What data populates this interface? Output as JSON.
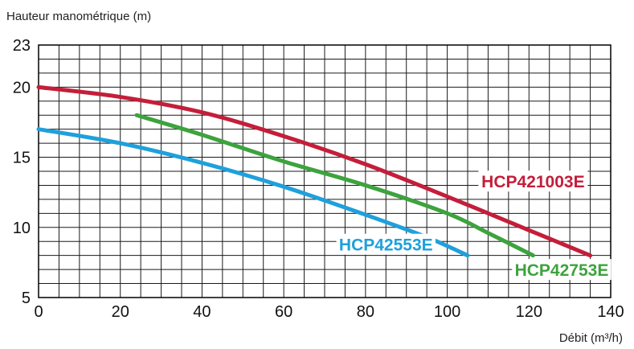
{
  "chart_data": {
    "type": "line",
    "ylabel": "Hauteur manométrique (m)",
    "xlabel": "Débit (m³/h)",
    "xlim": [
      0,
      140
    ],
    "ylim": [
      5,
      23
    ],
    "xticks": [
      0,
      20,
      40,
      60,
      80,
      100,
      120,
      140
    ],
    "yticks": [
      5,
      10,
      15,
      20,
      23
    ],
    "grid": true,
    "series": [
      {
        "name": "HCP421003E",
        "color": "#c41e3a",
        "x": [
          0,
          20,
          40,
          60,
          80,
          100,
          120,
          135
        ],
        "y": [
          20,
          19.3,
          18.2,
          16.5,
          14.5,
          12.2,
          9.8,
          8.0
        ]
      },
      {
        "name": "HCP42753E",
        "color": "#3da33d",
        "x": [
          24,
          40,
          60,
          80,
          100,
          110,
          121
        ],
        "y": [
          18,
          16.6,
          14.7,
          13.0,
          11.0,
          9.6,
          8.0
        ]
      },
      {
        "name": "HCP42553E",
        "color": "#1fa0dc",
        "x": [
          0,
          20,
          40,
          60,
          80,
          95,
          105
        ],
        "y": [
          17,
          16.0,
          14.6,
          12.9,
          10.9,
          9.3,
          8.0
        ]
      }
    ]
  }
}
